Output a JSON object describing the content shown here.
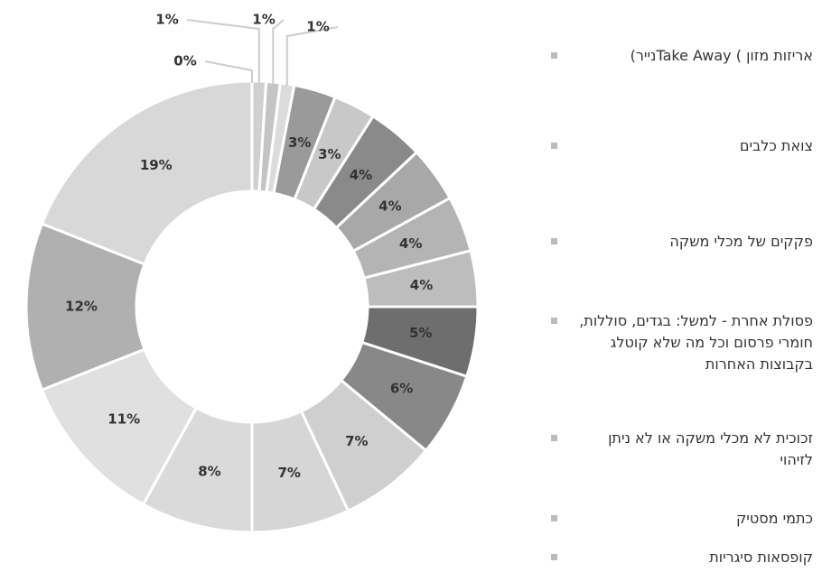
{
  "chart_data": {
    "type": "donut",
    "categories": [
      "אריזות מזון ) Take Awayנייר)",
      "צואת כלבים",
      "פקקים של מכלי משקה",
      "פסולת אחרת - למשל: בגדים, סוללות, חומרי פרסום וכל מה שלא קוטלג בקבוצות האחרות",
      "זכוכית לא מכלי משקה או לא ניתן לזיהוי",
      "כתמי מסטיק",
      "קופסאות סיגריות",
      null,
      null,
      null,
      null,
      null,
      null,
      null,
      null,
      null,
      null,
      null
    ],
    "values": [
      0,
      1,
      1,
      1,
      3,
      3,
      4,
      4,
      4,
      4,
      5,
      6,
      7,
      7,
      8,
      11,
      12,
      19
    ],
    "value_labels": [
      "0%",
      "1%",
      "1%",
      "1%",
      "3%",
      "3%",
      "4%",
      "4%",
      "4%",
      "4%",
      "5%",
      "6%",
      "7%",
      "7%",
      "8%",
      "11%",
      "12%",
      "19%"
    ],
    "colors": [
      "#e6e6e6",
      "#d0d0d0",
      "#c4c4c4",
      "#dcdcdc",
      "#9a9a9a",
      "#c8c8c8",
      "#8a8a8a",
      "#a8a8a8",
      "#b4b4b4",
      "#bdbdbd",
      "#6e6e6e",
      "#888888",
      "#cfcfcf",
      "#d6d6d6",
      "#dadada",
      "#e0e0e0",
      "#b0b0b0",
      "#d8d8d8"
    ]
  }
}
